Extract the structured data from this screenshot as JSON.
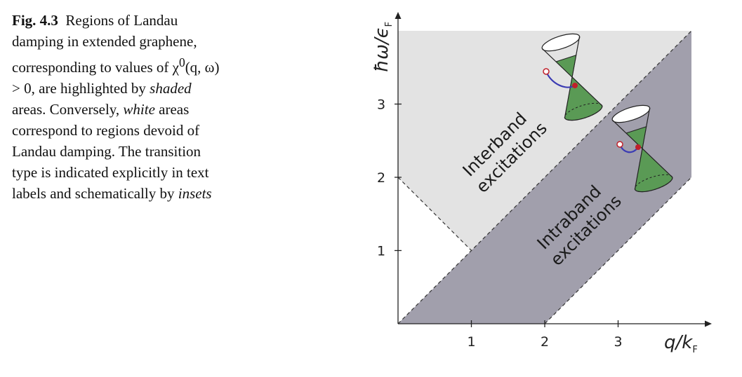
{
  "caption": {
    "label": "Fig. 4.3",
    "seg1": "Regions of Landau damping in extended graphene, corresponding to values of χ",
    "sup": "0",
    "seg2": "(q, ω) > 0, are highlighted by ",
    "em1": "shaded",
    "seg3": " areas. Conversely, ",
    "em2": "white",
    "seg4": " areas correspond to regions devoid of Landau damping. The transition type is indicated explicitly in text labels and schematically by ",
    "em3": "insets"
  },
  "axes": {
    "y_label_main": "ħω/ϵ",
    "y_label_sub": "F",
    "x_label_main": "q/k",
    "x_label_sub": "F"
  },
  "chart_data": {
    "type": "area",
    "x_ticks": [
      "1",
      "2",
      "3"
    ],
    "y_ticks": [
      "1",
      "2",
      "3"
    ],
    "xlim": [
      0,
      4.2
    ],
    "ylim": [
      0,
      4.0
    ],
    "regions": [
      {
        "name": "Interband excitations",
        "label_line1": "Interband",
        "label_line2": "excitations",
        "color": "#e3e3e3",
        "polygon": [
          [
            1,
            1
          ],
          [
            0,
            2
          ],
          [
            0,
            4.0
          ],
          [
            4.0,
            4.0
          ],
          [
            4.0,
            4.0
          ]
        ]
      },
      {
        "name": "Intraband excitations",
        "label_line1": "Intraband",
        "label_line2": "excitations",
        "color": "#a19fac",
        "polygon": [
          [
            0,
            0
          ],
          [
            2,
            0
          ],
          [
            4.0,
            2.0
          ],
          [
            4.0,
            4.0
          ]
        ]
      }
    ],
    "boundaries": [
      {
        "from": [
          0,
          0
        ],
        "to": [
          4.0,
          4.0
        ]
      },
      {
        "from": [
          2,
          0
        ],
        "to": [
          4.0,
          2.0
        ]
      },
      {
        "from": [
          0,
          2
        ],
        "to": [
          1,
          1
        ]
      }
    ],
    "inset_colors": {
      "cone": "#5a9a55",
      "arrow": "#3b3bb3",
      "dot": "#c0202a"
    }
  }
}
